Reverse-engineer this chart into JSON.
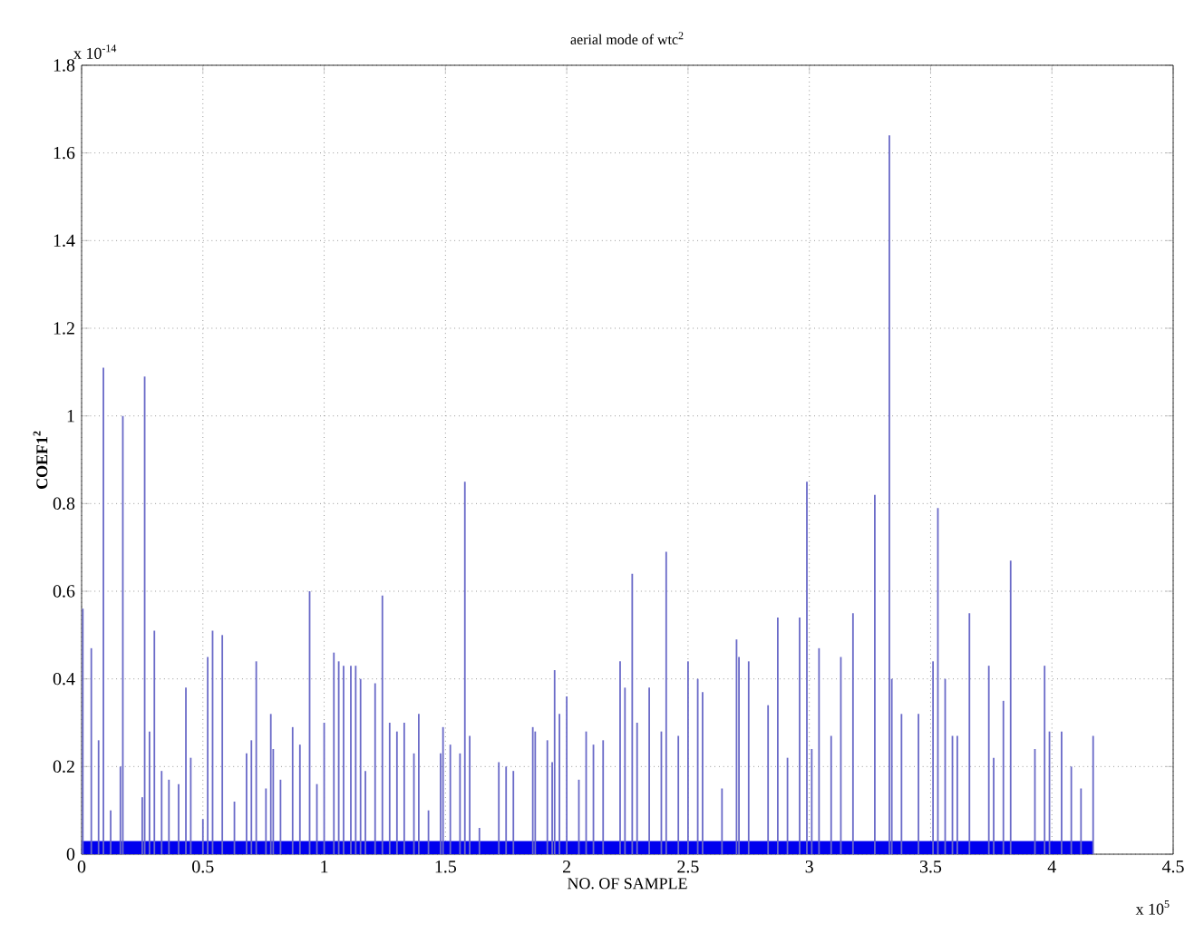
{
  "chart_data": {
    "type": "bar",
    "title": "aerial mode of wtc$^{2}$",
    "xlabel": "NO. OF SAMPLE",
    "ylabel": "COEF1$^{2}$",
    "annotations": [
      "x 10$^{-14}$",
      "x 10$^{5}$"
    ],
    "xlim": [
      0,
      4.5
    ],
    "ylim": [
      0,
      1.8
    ],
    "xticks": [
      0,
      0.5,
      1,
      1.5,
      2,
      2.5,
      3,
      3.5,
      4,
      4.5
    ],
    "yticks": [
      0,
      0.2,
      0.4,
      0.6,
      0.8,
      1,
      1.2,
      1.4,
      1.6,
      1.8
    ],
    "grid": true,
    "series": [
      {
        "type": "area",
        "color": "#0000ee",
        "x": [
          0,
          4.17
        ],
        "values": [
          0.03,
          0.03
        ]
      },
      {
        "color": "#6a6ac8",
        "x": [
          0.005,
          0.04,
          0.07,
          0.09,
          0.12,
          0.16,
          0.17,
          0.25,
          0.26,
          0.28,
          0.3,
          0.33,
          0.36,
          0.4,
          0.43,
          0.45,
          0.5,
          0.52,
          0.54,
          0.58,
          0.63,
          0.68,
          0.7,
          0.72,
          0.76,
          0.78,
          0.79,
          0.82,
          0.87,
          0.9,
          0.94,
          0.97,
          1.0,
          1.04,
          1.06,
          1.08,
          1.11,
          1.13,
          1.15,
          1.17,
          1.21,
          1.24,
          1.27,
          1.3,
          1.33,
          1.37,
          1.39,
          1.43,
          1.48,
          1.49,
          1.52,
          1.56,
          1.58,
          1.6,
          1.64,
          1.72,
          1.75,
          1.78,
          1.86,
          1.87,
          1.92,
          1.94,
          1.95,
          1.97,
          2.0,
          2.05,
          2.08,
          2.11,
          2.15,
          2.22,
          2.24,
          2.27,
          2.29,
          2.34,
          2.39,
          2.41,
          2.46,
          2.5,
          2.54,
          2.56,
          2.64,
          2.7,
          2.71,
          2.75,
          2.83,
          2.87,
          2.91,
          2.96,
          2.99,
          3.01,
          3.04,
          3.09,
          3.13,
          3.18,
          3.27,
          3.33,
          3.34,
          3.38,
          3.45,
          3.51,
          3.53,
          3.56,
          3.59,
          3.61,
          3.66,
          3.74,
          3.76,
          3.8,
          3.83,
          3.93,
          3.97,
          3.99,
          4.04,
          4.08,
          4.12,
          4.17
        ],
        "values": [
          0.56,
          0.47,
          0.26,
          1.11,
          0.1,
          0.2,
          1.0,
          0.13,
          1.09,
          0.28,
          0.51,
          0.19,
          0.17,
          0.16,
          0.38,
          0.22,
          0.08,
          0.45,
          0.51,
          0.5,
          0.12,
          0.23,
          0.26,
          0.44,
          0.15,
          0.32,
          0.24,
          0.17,
          0.29,
          0.25,
          0.6,
          0.16,
          0.3,
          0.46,
          0.44,
          0.43,
          0.43,
          0.43,
          0.4,
          0.19,
          0.39,
          0.59,
          0.3,
          0.28,
          0.3,
          0.23,
          0.32,
          0.1,
          0.23,
          0.29,
          0.25,
          0.23,
          0.85,
          0.27,
          0.06,
          0.21,
          0.2,
          0.19,
          0.29,
          0.28,
          0.26,
          0.21,
          0.42,
          0.32,
          0.36,
          0.17,
          0.28,
          0.25,
          0.26,
          0.44,
          0.38,
          0.64,
          0.3,
          0.38,
          0.28,
          0.69,
          0.27,
          0.44,
          0.4,
          0.37,
          0.15,
          0.49,
          0.45,
          0.44,
          0.34,
          0.54,
          0.22,
          0.54,
          0.85,
          0.24,
          0.47,
          0.27,
          0.45,
          0.55,
          0.82,
          1.64,
          0.4,
          0.32,
          0.32,
          0.44,
          0.79,
          0.4,
          0.27,
          0.27,
          0.55,
          0.43,
          0.22,
          0.35,
          0.67,
          0.24,
          0.43,
          0.28,
          0.28,
          0.2,
          0.15,
          0.27
        ]
      }
    ]
  }
}
